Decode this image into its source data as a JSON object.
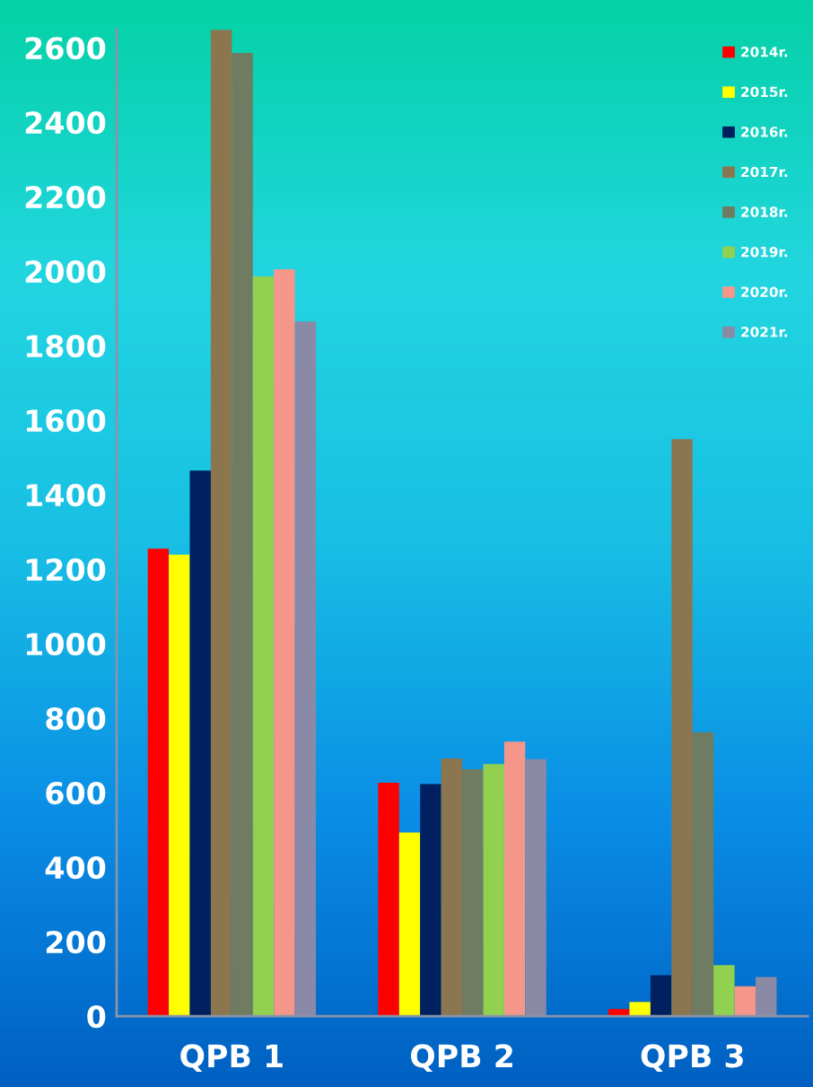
{
  "chart_data": {
    "type": "bar",
    "categories": [
      "QPB 1",
      "QPB 2",
      "QPB 3"
    ],
    "series": [
      {
        "name": "2014r.",
        "color": "#ff0000",
        "values": [
          1255,
          627,
          19
        ]
      },
      {
        "name": "2015r.",
        "color": "#ffff00",
        "values": [
          1239,
          493,
          38
        ]
      },
      {
        "name": "2016r.",
        "color": "#002060",
        "values": [
          1465,
          623,
          110
        ]
      },
      {
        "name": "2017r.",
        "color": "#8b7650",
        "values": [
          2648,
          692,
          1549
        ]
      },
      {
        "name": "2018r.",
        "color": "#707c62",
        "values": [
          2586,
          663,
          762
        ]
      },
      {
        "name": "2019r.",
        "color": "#92d050",
        "values": [
          1986,
          677,
          137
        ]
      },
      {
        "name": "2020r.",
        "color": "#f4978a",
        "values": [
          2005,
          737,
          80
        ]
      },
      {
        "name": "2021r.",
        "color": "#8a89a6",
        "values": [
          1865,
          690,
          105
        ]
      }
    ],
    "ylim": [
      0,
      2650
    ],
    "yticks": [
      0,
      200,
      400,
      600,
      800,
      1000,
      1200,
      1400,
      1600,
      1800,
      2000,
      2200,
      2400,
      2600
    ],
    "grid": false,
    "legend": "top right"
  }
}
